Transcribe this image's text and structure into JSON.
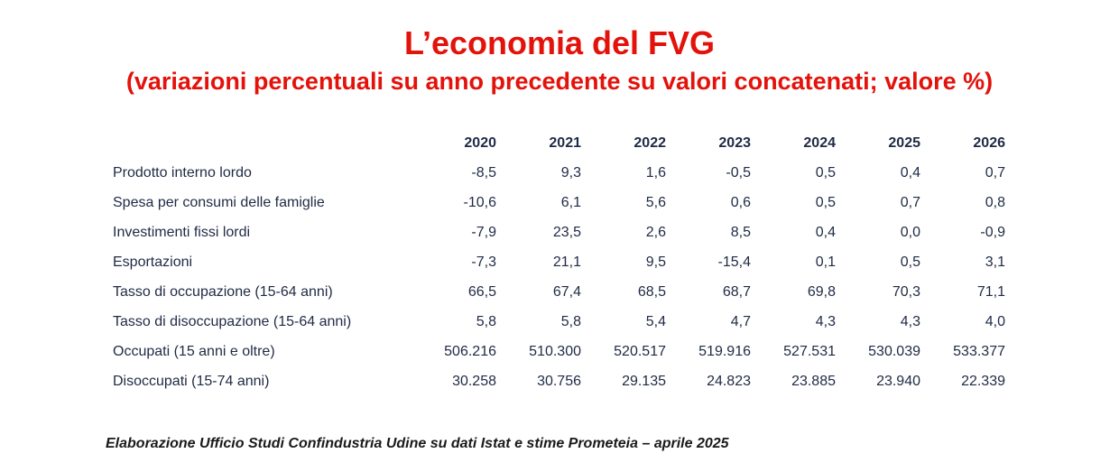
{
  "title": "L’economia del FVG",
  "subtitle": "(variazioni percentuali su anno precedente su valori concatenati; valore %)",
  "table": {
    "columns": [
      "2020",
      "2021",
      "2022",
      "2023",
      "2024",
      "2025",
      "2026"
    ],
    "rows": [
      {
        "label": "Prodotto interno lordo",
        "values": [
          "-8,5",
          "9,3",
          "1,6",
          "-0,5",
          "0,5",
          "0,4",
          "0,7"
        ]
      },
      {
        "label": "Spesa per consumi delle famiglie",
        "values": [
          "-10,6",
          "6,1",
          "5,6",
          "0,6",
          "0,5",
          "0,7",
          "0,8"
        ]
      },
      {
        "label": "Investimenti fissi lordi",
        "values": [
          "-7,9",
          "23,5",
          "2,6",
          "8,5",
          "0,4",
          "0,0",
          "-0,9"
        ]
      },
      {
        "label": "Esportazioni",
        "values": [
          "-7,3",
          "21,1",
          "9,5",
          "-15,4",
          "0,1",
          "0,5",
          "3,1"
        ]
      },
      {
        "label": "Tasso di occupazione (15-64 anni)",
        "values": [
          "66,5",
          "67,4",
          "68,5",
          "68,7",
          "69,8",
          "70,3",
          "71,1"
        ]
      },
      {
        "label": "Tasso di disoccupazione (15-64 anni)",
        "values": [
          "5,8",
          "5,8",
          "5,4",
          "4,7",
          "4,3",
          "4,3",
          "4,0"
        ]
      },
      {
        "label": "Occupati (15 anni e oltre)",
        "values": [
          "506.216",
          "510.300",
          "520.517",
          "519.916",
          "527.531",
          "530.039",
          "533.377"
        ]
      },
      {
        "label": "Disoccupati (15-74 anni)",
        "values": [
          "30.258",
          "30.756",
          "29.135",
          "24.823",
          "23.885",
          "23.940",
          "22.339"
        ]
      }
    ]
  },
  "source": "Elaborazione Ufficio Studi Confindustria Udine su dati Istat e stime Prometeia – aprile 2025",
  "colors": {
    "title": "#e3120b",
    "table_text": "#1f2a44"
  }
}
